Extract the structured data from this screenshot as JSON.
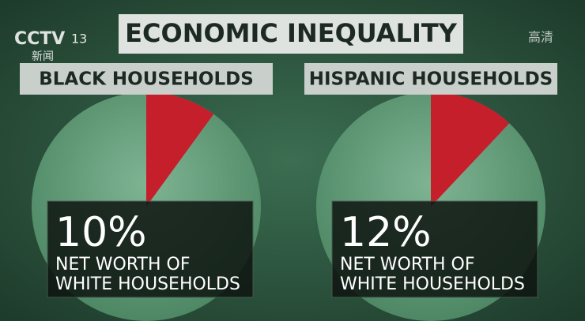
{
  "header": {
    "title": "ECONOMIC INEQUALITY"
  },
  "overlay": {
    "channel": "CCTV",
    "channel_number": "13",
    "channel_label": "新闻",
    "quality": "高清"
  },
  "chart_data": [
    {
      "type": "pie",
      "title": "BLACK HOUSEHOLDS",
      "values": [
        10
      ],
      "value_labels": [
        "10%"
      ],
      "subtitle_lines": [
        "NET WORTH OF",
        "WHITE HOUSEHOLDS"
      ],
      "color": "#c41f2b"
    },
    {
      "type": "pie",
      "title": "HISPANIC HOUSEHOLDS",
      "values": [
        12
      ],
      "value_labels": [
        "12%"
      ],
      "subtitle_lines": [
        "NET WORTH OF",
        "WHITE HOUSEHOLDS"
      ],
      "color": "#c41f2b"
    }
  ]
}
